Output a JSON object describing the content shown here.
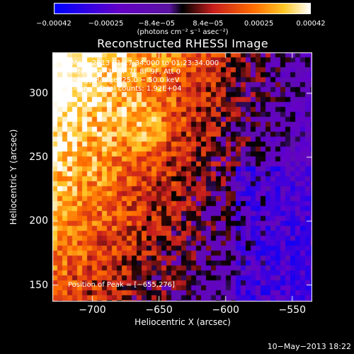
{
  "chart_data": {
    "type": "heatmap",
    "title": "Reconstructed RHESSI Image",
    "xlabel": "Heliocentric X (arcsec)",
    "ylabel": "Heliocentric Y (arcsec)",
    "xlim": [
      -730,
      -535
    ],
    "ylim": [
      137,
      332
    ],
    "xticks": [
      -700,
      -650,
      -600,
      -550
    ],
    "yticks": [
      150,
      200,
      250,
      300
    ],
    "xtick_labels": [
      "−700",
      "−650",
      "−600",
      "−550"
    ],
    "ytick_labels": [
      "150",
      "200",
      "250",
      "300"
    ],
    "colorbar": {
      "min": -0.00042,
      "max": 0.00042,
      "tick_values": [
        -0.00042,
        -0.00025,
        -8.4e-05,
        8.4e-05,
        0.00025,
        0.00042
      ],
      "tick_labels": [
        "−0.00042",
        "−0.00025",
        "−8.4e−05",
        "8.4e−05",
        "0.00025",
        "0.00042"
      ],
      "units": "(photons cm⁻² s⁻¹ asec⁻²)"
    },
    "annotations": [
      "6−May−2013 01:17:34.000 to 01:23:34.000",
      "Detectors: 3F 6F 7F 8F 9F, Att 0",
      "Energy Range: 25.0 − 50.0 keV",
      "Clean     Total counts: 1.92E+04"
    ],
    "peak_label": "Position of Peak = [−655,276]",
    "peak": [
      -655,
      276
    ]
  },
  "footer": {
    "timestamp": "10−May−2013 18:22"
  }
}
